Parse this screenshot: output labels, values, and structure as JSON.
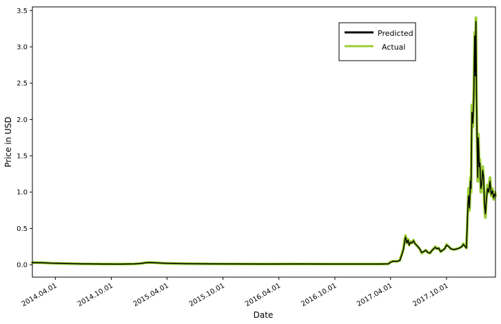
{
  "chart_data": {
    "type": "line",
    "xlabel": "Date",
    "ylabel": "Price in USD",
    "x_range": [
      "2014-01-16",
      "2018-03-10"
    ],
    "ylim": [
      -0.17,
      3.55
    ],
    "x_ticks": [
      {
        "date": "2014-04-01",
        "label": "2014.04.01"
      },
      {
        "date": "2014-10-01",
        "label": "2014.10.01"
      },
      {
        "date": "2015-04-01",
        "label": "2015.04.01"
      },
      {
        "date": "2015-10-01",
        "label": "2015.10.01"
      },
      {
        "date": "2016-04-01",
        "label": "2016.04.01"
      },
      {
        "date": "2016-10-01",
        "label": "2016.10.01"
      },
      {
        "date": "2017-04-01",
        "label": "2017.04.01"
      },
      {
        "date": "2017-10-01",
        "label": "2017.10.01"
      }
    ],
    "y_ticks": [
      {
        "value": 0.0,
        "label": "0.0"
      },
      {
        "value": 0.5,
        "label": "0.5"
      },
      {
        "value": 1.0,
        "label": "1.0"
      },
      {
        "value": 1.5,
        "label": "1.5"
      },
      {
        "value": 2.0,
        "label": "2.0"
      },
      {
        "value": 2.5,
        "label": "2.5"
      },
      {
        "value": 3.0,
        "label": "3.0"
      },
      {
        "value": 3.5,
        "label": "3.5"
      }
    ],
    "grid": false,
    "legend": {
      "position": "top-right"
    },
    "series": [
      {
        "name": "Actual",
        "color": "#9acd32",
        "points": [
          [
            "2014-01-16",
            0.03
          ],
          [
            "2014-02-15",
            0.028
          ],
          [
            "2014-03-20",
            0.022
          ],
          [
            "2014-05-01",
            0.018
          ],
          [
            "2014-07-01",
            0.013
          ],
          [
            "2014-09-01",
            0.01
          ],
          [
            "2014-11-01",
            0.009
          ],
          [
            "2014-12-15",
            0.012
          ],
          [
            "2015-01-05",
            0.018
          ],
          [
            "2015-01-20",
            0.028
          ],
          [
            "2015-02-05",
            0.032
          ],
          [
            "2015-02-25",
            0.027
          ],
          [
            "2015-04-01",
            0.02
          ],
          [
            "2015-06-01",
            0.015
          ],
          [
            "2015-09-01",
            0.012
          ],
          [
            "2015-12-01",
            0.011
          ],
          [
            "2016-03-01",
            0.01
          ],
          [
            "2016-06-01",
            0.011
          ],
          [
            "2016-09-01",
            0.01
          ],
          [
            "2016-12-01",
            0.01
          ],
          [
            "2017-03-01",
            0.01
          ],
          [
            "2017-03-25",
            0.012
          ],
          [
            "2017-04-01",
            0.04
          ],
          [
            "2017-04-10",
            0.05
          ],
          [
            "2017-04-20",
            0.045
          ],
          [
            "2017-05-01",
            0.06
          ],
          [
            "2017-05-08",
            0.15
          ],
          [
            "2017-05-13",
            0.22
          ],
          [
            "2017-05-17",
            0.34
          ],
          [
            "2017-05-20",
            0.4
          ],
          [
            "2017-05-24",
            0.3
          ],
          [
            "2017-05-28",
            0.35
          ],
          [
            "2017-06-01",
            0.27
          ],
          [
            "2017-06-05",
            0.32
          ],
          [
            "2017-06-10",
            0.3
          ],
          [
            "2017-06-15",
            0.34
          ],
          [
            "2017-06-20",
            0.29
          ],
          [
            "2017-06-27",
            0.26
          ],
          [
            "2017-07-05",
            0.22
          ],
          [
            "2017-07-12",
            0.16
          ],
          [
            "2017-07-18",
            0.18
          ],
          [
            "2017-07-25",
            0.2
          ],
          [
            "2017-08-01",
            0.17
          ],
          [
            "2017-08-08",
            0.16
          ],
          [
            "2017-08-15",
            0.2
          ],
          [
            "2017-08-20",
            0.22
          ],
          [
            "2017-08-25",
            0.25
          ],
          [
            "2017-08-30",
            0.22
          ],
          [
            "2017-09-05",
            0.23
          ],
          [
            "2017-09-12",
            0.18
          ],
          [
            "2017-09-18",
            0.2
          ],
          [
            "2017-09-25",
            0.22
          ],
          [
            "2017-10-01",
            0.28
          ],
          [
            "2017-10-08",
            0.25
          ],
          [
            "2017-10-15",
            0.22
          ],
          [
            "2017-10-25",
            0.21
          ],
          [
            "2017-11-05",
            0.22
          ],
          [
            "2017-11-12",
            0.23
          ],
          [
            "2017-11-20",
            0.25
          ],
          [
            "2017-11-25",
            0.29
          ],
          [
            "2017-12-01",
            0.25
          ],
          [
            "2017-12-05",
            0.23
          ],
          [
            "2017-12-10",
            0.8
          ],
          [
            "2017-12-12",
            1.05
          ],
          [
            "2017-12-15",
            0.75
          ],
          [
            "2017-12-18",
            1.2
          ],
          [
            "2017-12-20",
            1.0
          ],
          [
            "2017-12-23",
            2.2
          ],
          [
            "2017-12-26",
            1.9
          ],
          [
            "2017-12-29",
            2.4
          ],
          [
            "2018-01-01",
            3.2
          ],
          [
            "2018-01-03",
            2.5
          ],
          [
            "2018-01-05",
            3.4
          ],
          [
            "2018-01-07",
            2.2
          ],
          [
            "2018-01-09",
            1.6
          ],
          [
            "2018-01-11",
            1.15
          ],
          [
            "2018-01-13",
            1.8
          ],
          [
            "2018-01-16",
            1.3
          ],
          [
            "2018-01-18",
            1.45
          ],
          [
            "2018-01-21",
            1.0
          ],
          [
            "2018-01-24",
            1.15
          ],
          [
            "2018-01-27",
            1.35
          ],
          [
            "2018-01-30",
            1.2
          ],
          [
            "2018-02-02",
            0.8
          ],
          [
            "2018-02-05",
            0.65
          ],
          [
            "2018-02-08",
            0.9
          ],
          [
            "2018-02-12",
            1.1
          ],
          [
            "2018-02-16",
            1.0
          ],
          [
            "2018-02-20",
            1.2
          ],
          [
            "2018-02-24",
            0.95
          ],
          [
            "2018-02-28",
            1.05
          ],
          [
            "2018-03-04",
            0.9
          ],
          [
            "2018-03-08",
            1.0
          ],
          [
            "2018-03-10",
            0.95
          ]
        ]
      },
      {
        "name": "Predicted",
        "color": "#000000",
        "points": [
          [
            "2014-01-16",
            0.03
          ],
          [
            "2014-02-15",
            0.028
          ],
          [
            "2014-03-20",
            0.022
          ],
          [
            "2014-05-01",
            0.018
          ],
          [
            "2014-07-01",
            0.013
          ],
          [
            "2014-09-01",
            0.01
          ],
          [
            "2014-11-01",
            0.009
          ],
          [
            "2014-12-15",
            0.012
          ],
          [
            "2015-01-05",
            0.018
          ],
          [
            "2015-01-20",
            0.027
          ],
          [
            "2015-02-05",
            0.031
          ],
          [
            "2015-02-25",
            0.027
          ],
          [
            "2015-04-01",
            0.02
          ],
          [
            "2015-06-01",
            0.015
          ],
          [
            "2015-09-01",
            0.012
          ],
          [
            "2015-12-01",
            0.011
          ],
          [
            "2016-03-01",
            0.01
          ],
          [
            "2016-06-01",
            0.011
          ],
          [
            "2016-09-01",
            0.01
          ],
          [
            "2016-12-01",
            0.01
          ],
          [
            "2017-03-01",
            0.01
          ],
          [
            "2017-03-25",
            0.012
          ],
          [
            "2017-04-01",
            0.035
          ],
          [
            "2017-04-10",
            0.048
          ],
          [
            "2017-04-20",
            0.045
          ],
          [
            "2017-05-01",
            0.058
          ],
          [
            "2017-05-08",
            0.14
          ],
          [
            "2017-05-13",
            0.21
          ],
          [
            "2017-05-17",
            0.32
          ],
          [
            "2017-05-20",
            0.38
          ],
          [
            "2017-05-24",
            0.3
          ],
          [
            "2017-05-28",
            0.34
          ],
          [
            "2017-06-01",
            0.27
          ],
          [
            "2017-06-05",
            0.31
          ],
          [
            "2017-06-10",
            0.3
          ],
          [
            "2017-06-15",
            0.33
          ],
          [
            "2017-06-20",
            0.29
          ],
          [
            "2017-06-27",
            0.26
          ],
          [
            "2017-07-05",
            0.22
          ],
          [
            "2017-07-12",
            0.17
          ],
          [
            "2017-07-18",
            0.18
          ],
          [
            "2017-07-25",
            0.2
          ],
          [
            "2017-08-01",
            0.17
          ],
          [
            "2017-08-08",
            0.16
          ],
          [
            "2017-08-15",
            0.2
          ],
          [
            "2017-08-20",
            0.22
          ],
          [
            "2017-08-25",
            0.24
          ],
          [
            "2017-08-30",
            0.22
          ],
          [
            "2017-09-05",
            0.23
          ],
          [
            "2017-09-12",
            0.18
          ],
          [
            "2017-09-18",
            0.2
          ],
          [
            "2017-09-25",
            0.22
          ],
          [
            "2017-10-01",
            0.27
          ],
          [
            "2017-10-08",
            0.25
          ],
          [
            "2017-10-15",
            0.22
          ],
          [
            "2017-10-25",
            0.21
          ],
          [
            "2017-11-05",
            0.22
          ],
          [
            "2017-11-12",
            0.23
          ],
          [
            "2017-11-20",
            0.25
          ],
          [
            "2017-11-25",
            0.28
          ],
          [
            "2017-12-01",
            0.25
          ],
          [
            "2017-12-05",
            0.23
          ],
          [
            "2017-12-10",
            0.85
          ],
          [
            "2017-12-12",
            0.95
          ],
          [
            "2017-12-15",
            0.78
          ],
          [
            "2017-12-18",
            1.15
          ],
          [
            "2017-12-20",
            1.05
          ],
          [
            "2017-12-23",
            2.1
          ],
          [
            "2017-12-26",
            1.95
          ],
          [
            "2017-12-29",
            2.3
          ],
          [
            "2018-01-01",
            3.15
          ],
          [
            "2018-01-03",
            2.6
          ],
          [
            "2018-01-05",
            3.35
          ],
          [
            "2018-01-07",
            2.3
          ],
          [
            "2018-01-09",
            1.65
          ],
          [
            "2018-01-11",
            1.2
          ],
          [
            "2018-01-13",
            1.75
          ],
          [
            "2018-01-16",
            1.35
          ],
          [
            "2018-01-18",
            1.4
          ],
          [
            "2018-01-21",
            1.05
          ],
          [
            "2018-01-24",
            1.1
          ],
          [
            "2018-01-27",
            1.3
          ],
          [
            "2018-01-30",
            1.2
          ],
          [
            "2018-02-02",
            0.85
          ],
          [
            "2018-02-05",
            0.7
          ],
          [
            "2018-02-08",
            0.88
          ],
          [
            "2018-02-12",
            1.05
          ],
          [
            "2018-02-16",
            1.0
          ],
          [
            "2018-02-20",
            1.15
          ],
          [
            "2018-02-24",
            0.97
          ],
          [
            "2018-02-28",
            1.02
          ],
          [
            "2018-03-04",
            0.92
          ],
          [
            "2018-03-08",
            0.98
          ],
          [
            "2018-03-10",
            0.95
          ]
        ]
      }
    ]
  }
}
